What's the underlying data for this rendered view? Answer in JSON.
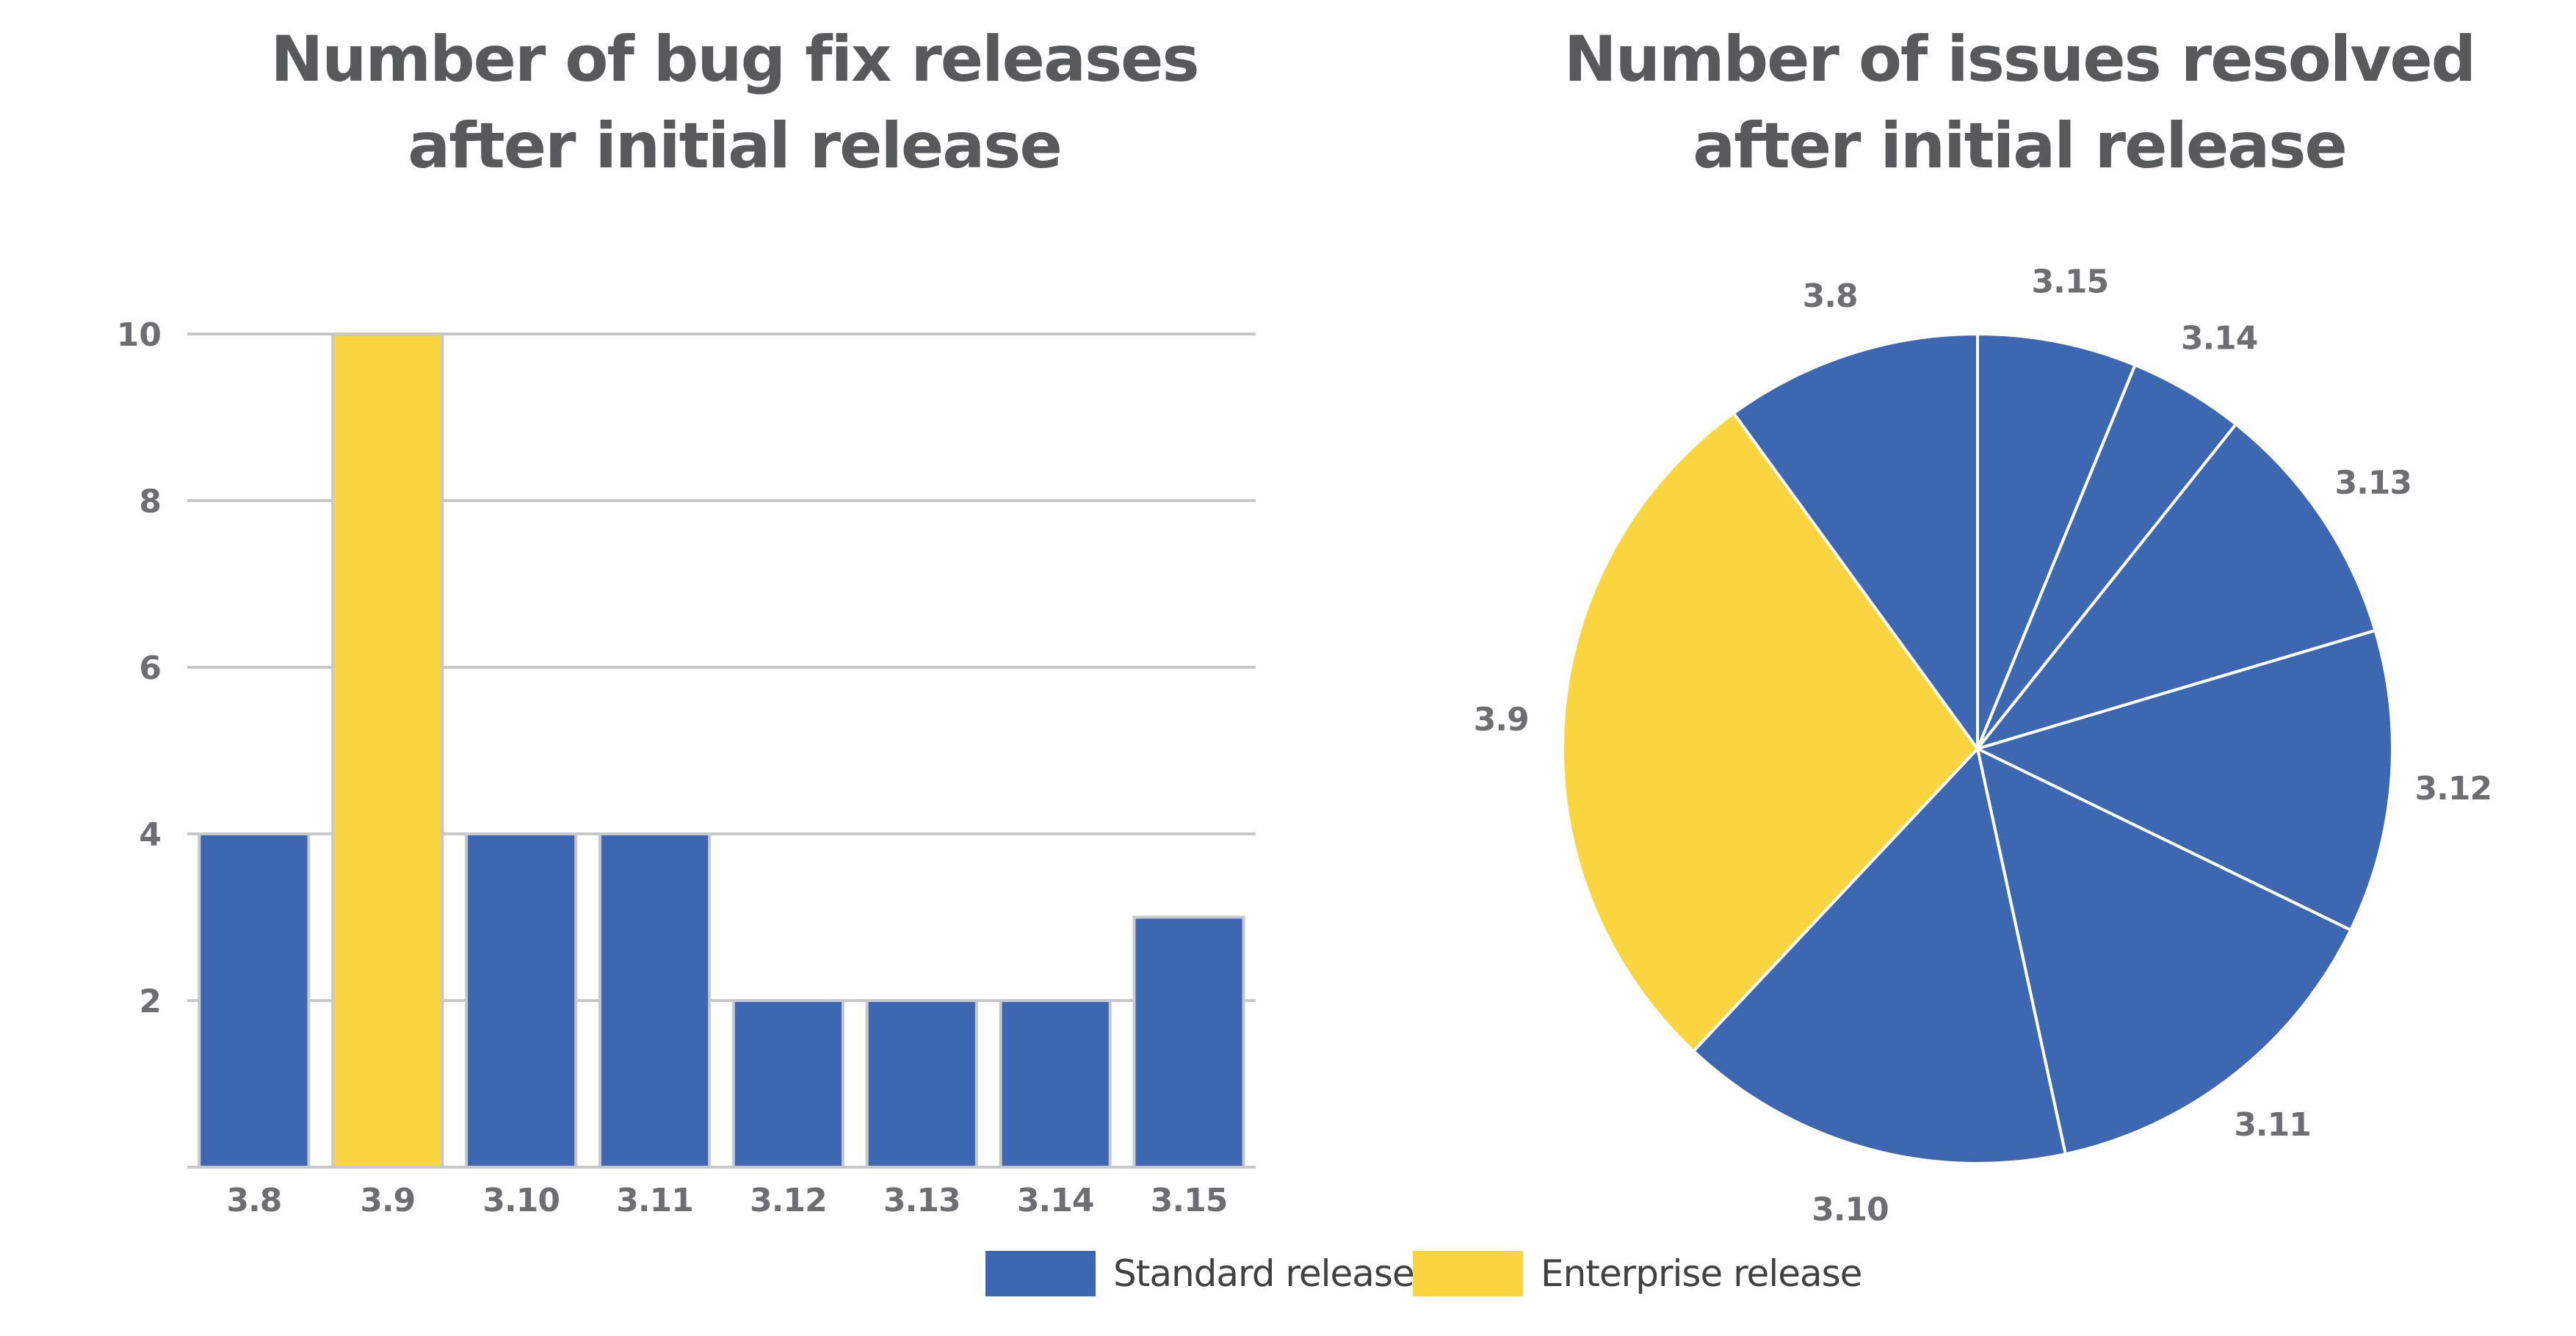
{
  "colors": {
    "standard": "#3d68b1",
    "enterprise": "#fad53f",
    "grid": "#c7c8ca",
    "text": "#58595b"
  },
  "chart_data": [
    {
      "type": "bar",
      "title": [
        "Number of bug fix releases",
        "after initial release"
      ],
      "categories": [
        "3.8",
        "3.9",
        "3.10",
        "3.11",
        "3.12",
        "3.13",
        "3.14",
        "3.15"
      ],
      "values": [
        4,
        10,
        4,
        4,
        2,
        2,
        2,
        3
      ],
      "release_type": [
        "standard",
        "enterprise",
        "standard",
        "standard",
        "standard",
        "standard",
        "standard",
        "standard"
      ],
      "yticks": [
        2,
        4,
        6,
        8,
        10
      ],
      "ylim": [
        0,
        10
      ],
      "grid": true
    },
    {
      "type": "pie",
      "title": [
        "Number of issues resolved",
        "after initial release"
      ],
      "direction": "clockwise",
      "start": "top",
      "slices": [
        {
          "label": "3.15",
          "value": 6.2,
          "release_type": "standard"
        },
        {
          "label": "3.14",
          "value": 4.5,
          "release_type": "standard"
        },
        {
          "label": "3.13",
          "value": 9.7,
          "release_type": "standard"
        },
        {
          "label": "3.12",
          "value": 11.8,
          "release_type": "standard"
        },
        {
          "label": "3.11",
          "value": 14.4,
          "release_type": "standard"
        },
        {
          "label": "3.10",
          "value": 15.4,
          "release_type": "standard"
        },
        {
          "label": "3.9",
          "value": 28.0,
          "release_type": "enterprise"
        },
        {
          "label": "3.8",
          "value": 10.0,
          "release_type": "standard"
        }
      ]
    }
  ],
  "legend": [
    {
      "label": "Standard release",
      "release_type": "standard"
    },
    {
      "label": "Enterprise release",
      "release_type": "enterprise"
    }
  ]
}
